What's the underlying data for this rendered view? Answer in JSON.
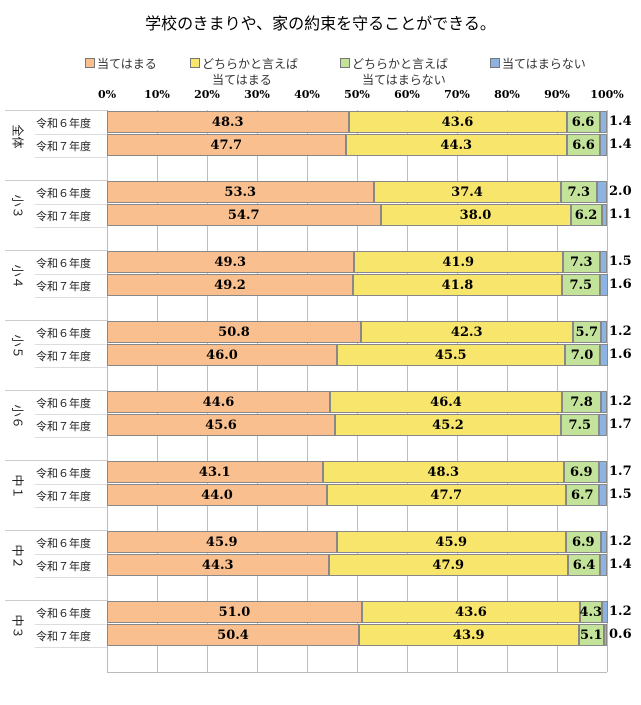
{
  "chart_data": {
    "type": "bar",
    "orientation": "horizontal",
    "stacked": true,
    "title": "学校のきまりや、家の約束を守ることができる。",
    "legend": [
      "当てはまる",
      "どちらかと言えば当てはまる",
      "どちらかと言えば当てはまらない",
      "当てはまらない"
    ],
    "legend_placement": "top",
    "colors": [
      "#f9bf8f",
      "#f8e56c",
      "#c3e29a",
      "#8db3e2"
    ],
    "xlim": [
      0,
      100
    ],
    "xticks": [
      "0%",
      "10%",
      "20%",
      "30%",
      "40%",
      "50%",
      "60%",
      "70%",
      "80%",
      "90%",
      "100%"
    ],
    "grid": true,
    "groups": [
      {
        "name": "全体",
        "rows": [
          {
            "label": "令和６年度",
            "values": [
              48.3,
              43.6,
              6.6,
              1.4
            ]
          },
          {
            "label": "令和７年度",
            "values": [
              47.7,
              44.3,
              6.6,
              1.4
            ]
          }
        ]
      },
      {
        "name": "小３",
        "rows": [
          {
            "label": "令和６年度",
            "values": [
              53.3,
              37.4,
              7.3,
              2.0
            ]
          },
          {
            "label": "令和７年度",
            "values": [
              54.7,
              38.0,
              6.2,
              1.1
            ]
          }
        ]
      },
      {
        "name": "小４",
        "rows": [
          {
            "label": "令和６年度",
            "values": [
              49.3,
              41.9,
              7.3,
              1.5
            ]
          },
          {
            "label": "令和７年度",
            "values": [
              49.2,
              41.8,
              7.5,
              1.6
            ]
          }
        ]
      },
      {
        "name": "小５",
        "rows": [
          {
            "label": "令和６年度",
            "values": [
              50.8,
              42.3,
              5.7,
              1.2
            ]
          },
          {
            "label": "令和７年度",
            "values": [
              46.0,
              45.5,
              7.0,
              1.6
            ]
          }
        ]
      },
      {
        "name": "小６",
        "rows": [
          {
            "label": "令和６年度",
            "values": [
              44.6,
              46.4,
              7.8,
              1.2
            ]
          },
          {
            "label": "令和７年度",
            "values": [
              45.6,
              45.2,
              7.5,
              1.7
            ]
          }
        ]
      },
      {
        "name": "中１",
        "rows": [
          {
            "label": "令和６年度",
            "values": [
              43.1,
              48.3,
              6.9,
              1.7
            ]
          },
          {
            "label": "令和７年度",
            "values": [
              44.0,
              47.7,
              6.7,
              1.5
            ]
          }
        ]
      },
      {
        "name": "中２",
        "rows": [
          {
            "label": "令和６年度",
            "values": [
              45.9,
              45.9,
              6.9,
              1.2
            ]
          },
          {
            "label": "令和７年度",
            "values": [
              44.3,
              47.9,
              6.4,
              1.4
            ]
          }
        ]
      },
      {
        "name": "中３",
        "rows": [
          {
            "label": "令和６年度",
            "values": [
              51.0,
              43.6,
              4.3,
              1.2
            ]
          },
          {
            "label": "令和７年度",
            "values": [
              50.4,
              43.9,
              5.1,
              0.6
            ]
          }
        ]
      }
    ]
  }
}
